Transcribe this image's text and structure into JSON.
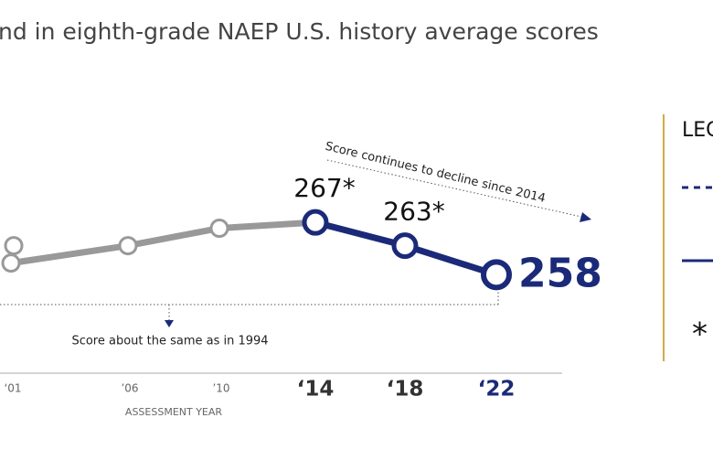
{
  "chart_data": {
    "type": "line",
    "title": "nd in eighth-grade NAEP U.S. history average scores",
    "x_label": "ASSESSMENT YEAR",
    "categories": [
      "‘01",
      "’06",
      "’10",
      "‘14",
      "‘18",
      "‘22"
    ],
    "series": [
      {
        "color": "#999999",
        "values": [
          260,
          263,
          266,
          267,
          null,
          null
        ]
      },
      {
        "color": "#999999",
        "values": [
          263,
          null,
          null,
          null,
          null,
          null
        ]
      },
      {
        "color": "#1b2a78",
        "values": [
          null,
          null,
          null,
          267,
          263,
          258
        ],
        "value_labels": [
          null,
          null,
          null,
          "267*",
          "263*",
          "258"
        ]
      }
    ],
    "ylim": [
      236,
      299
    ],
    "annotations": [
      "Score continues to decline since 2014",
      "Score about the same as in 1994"
    ],
    "legend": {
      "title": "LEG",
      "symbols": [
        "*"
      ]
    }
  }
}
